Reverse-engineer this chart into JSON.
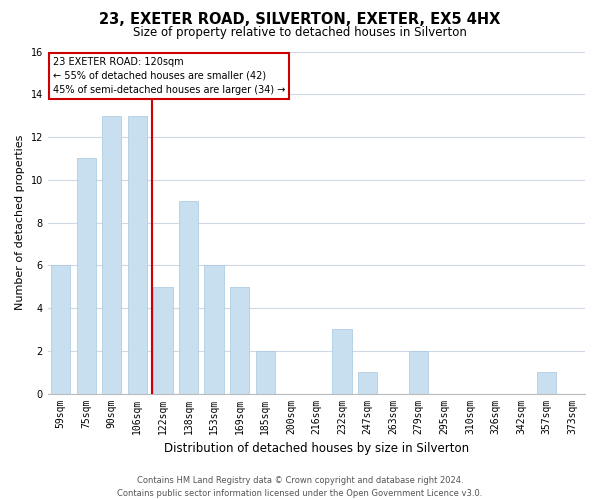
{
  "title": "23, EXETER ROAD, SILVERTON, EXETER, EX5 4HX",
  "subtitle": "Size of property relative to detached houses in Silverton",
  "xlabel": "Distribution of detached houses by size in Silverton",
  "ylabel": "Number of detached properties",
  "categories": [
    "59sqm",
    "75sqm",
    "90sqm",
    "106sqm",
    "122sqm",
    "138sqm",
    "153sqm",
    "169sqm",
    "185sqm",
    "200sqm",
    "216sqm",
    "232sqm",
    "247sqm",
    "263sqm",
    "279sqm",
    "295sqm",
    "310sqm",
    "326sqm",
    "342sqm",
    "357sqm",
    "373sqm"
  ],
  "values": [
    6,
    11,
    13,
    13,
    5,
    9,
    6,
    5,
    2,
    0,
    0,
    3,
    1,
    0,
    2,
    0,
    0,
    0,
    0,
    1,
    0
  ],
  "bar_color": "#c8dff0",
  "bar_edge_color": "#a8c8e0",
  "highlight_index": 4,
  "highlight_line_color": "#cc0000",
  "ylim": [
    0,
    16
  ],
  "yticks": [
    0,
    2,
    4,
    6,
    8,
    10,
    12,
    14,
    16
  ],
  "annotation_title": "23 EXETER ROAD: 120sqm",
  "annotation_line1": "← 55% of detached houses are smaller (42)",
  "annotation_line2": "45% of semi-detached houses are larger (34) →",
  "annotation_box_color": "#ffffff",
  "annotation_box_edge": "#cc0000",
  "footer_line1": "Contains HM Land Registry data © Crown copyright and database right 2024.",
  "footer_line2": "Contains public sector information licensed under the Open Government Licence v3.0.",
  "background_color": "#ffffff",
  "grid_color": "#d0d8e8",
  "title_fontsize": 10.5,
  "subtitle_fontsize": 8.5,
  "ylabel_fontsize": 8,
  "xlabel_fontsize": 8.5,
  "tick_fontsize": 7,
  "annotation_fontsize": 7,
  "footer_fontsize": 6
}
